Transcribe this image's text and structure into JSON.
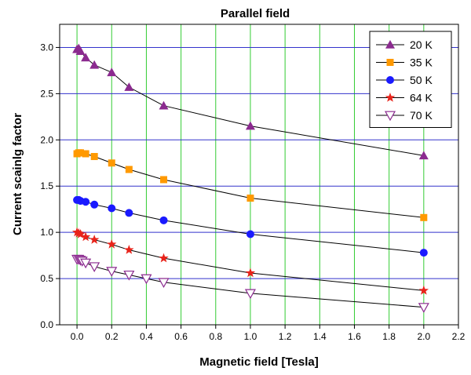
{
  "chart_data": {
    "type": "line",
    "title": "Parallel field",
    "xlabel": "Magnetic field [Tesla]",
    "ylabel": "Current scainlg factor",
    "xlim": [
      -0.1,
      2.2
    ],
    "ylim": [
      0.0,
      3.25
    ],
    "xticks": [
      0.0,
      0.2,
      0.4,
      0.6,
      0.8,
      1.0,
      1.2,
      1.4,
      1.6,
      1.8,
      2.0,
      2.2
    ],
    "xtick_labels": [
      "0.0",
      "0.2",
      "0.4",
      "0.6",
      "0.8",
      "1.0",
      "1.2",
      "1.4",
      "1.6",
      "1.8",
      "2.0",
      "2.2"
    ],
    "yticks": [
      0.0,
      0.5,
      1.0,
      1.5,
      2.0,
      2.5,
      3.0
    ],
    "ytick_labels": [
      "0.0",
      "0.5",
      "1.0",
      "1.5",
      "2.0",
      "2.5",
      "3.0"
    ],
    "grid": {
      "vertical": true,
      "vertical_color": "#33cc33",
      "horizontal": true,
      "horizontal_color": "#3333cc"
    },
    "legend_position": "top-right",
    "series": [
      {
        "name": "20 K",
        "marker": "triangle-up",
        "color": "#8b2a8f",
        "x": [
          0.0,
          0.01,
          0.02,
          0.05,
          0.1,
          0.2,
          0.3,
          0.5,
          1.0,
          2.0
        ],
        "y": [
          2.98,
          2.99,
          2.96,
          2.89,
          2.81,
          2.73,
          2.57,
          2.37,
          2.15,
          1.83
        ]
      },
      {
        "name": "35 K",
        "marker": "square",
        "color": "#ff9900",
        "x": [
          0.0,
          0.01,
          0.02,
          0.05,
          0.1,
          0.2,
          0.3,
          0.5,
          1.0,
          2.0
        ],
        "y": [
          1.85,
          1.86,
          1.86,
          1.85,
          1.82,
          1.75,
          1.68,
          1.57,
          1.37,
          1.16
        ]
      },
      {
        "name": "50 K",
        "marker": "circle",
        "color": "#1a1aff",
        "x": [
          0.0,
          0.01,
          0.02,
          0.05,
          0.1,
          0.2,
          0.3,
          0.5,
          1.0,
          2.0
        ],
        "y": [
          1.35,
          1.35,
          1.34,
          1.33,
          1.3,
          1.26,
          1.21,
          1.13,
          0.98,
          0.78
        ]
      },
      {
        "name": "64 K",
        "marker": "star",
        "color": "#e8231a",
        "x": [
          0.0,
          0.01,
          0.02,
          0.05,
          0.1,
          0.2,
          0.3,
          0.5,
          1.0,
          2.0
        ],
        "y": [
          1.0,
          0.99,
          0.98,
          0.95,
          0.92,
          0.87,
          0.81,
          0.72,
          0.56,
          0.37
        ]
      },
      {
        "name": "70 K",
        "marker": "triangle-down-open",
        "color": "#8b2a8f",
        "x": [
          0.0,
          0.01,
          0.02,
          0.03,
          0.05,
          0.1,
          0.2,
          0.3,
          0.4,
          0.5,
          1.0,
          2.0
        ],
        "y": [
          0.71,
          0.71,
          0.7,
          0.69,
          0.67,
          0.63,
          0.58,
          0.54,
          0.5,
          0.46,
          0.34,
          0.19
        ]
      }
    ]
  }
}
